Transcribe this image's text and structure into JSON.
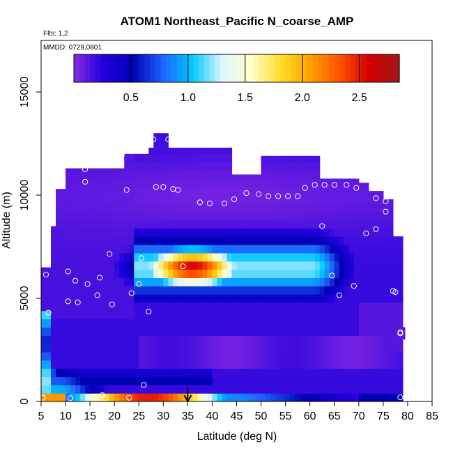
{
  "chart_data": {
    "type": "heatmap",
    "title": "ATOM1 Northeast_Pacific N_coarse_AMP",
    "flights_label": "Flts: 1,2",
    "date_label": "MMDD: 0729,0801",
    "xlabel": "Latitude (deg N)",
    "ylabel": "Altitude (m)",
    "xlim": [
      5,
      85
    ],
    "ylim": [
      0,
      17500
    ],
    "x_ticks": [
      "5",
      "10",
      "15",
      "20",
      "25",
      "30",
      "35",
      "40",
      "45",
      "50",
      "55",
      "60",
      "65",
      "70",
      "75",
      "80",
      "85"
    ],
    "y_ticks": [
      "0",
      "5000",
      "10000",
      "15000"
    ],
    "colorbar": {
      "range": [
        0,
        2.85
      ],
      "ticks": [
        "0.5",
        "1.0",
        "1.5",
        "2.0",
        "2.5"
      ],
      "colors": [
        "#8a2be2",
        "#1f00dc",
        "#0000b4",
        "#1e64ff",
        "#00c8ff",
        "#dcf5ff",
        "#ffffc8",
        "#ffdc28",
        "#ffa000",
        "#ff5000",
        "#d20000",
        "#a01919"
      ]
    },
    "marker_latitude": 35,
    "domain_profile": {
      "latitude": [
        5,
        7,
        8,
        10,
        14,
        20,
        22,
        27,
        28,
        31,
        35,
        40,
        44,
        50,
        56,
        62,
        67,
        70,
        72,
        75,
        77,
        79
      ],
      "top_altitude": [
        6500,
        8500,
        10300,
        11300,
        11300,
        11300,
        12000,
        12300,
        13000,
        12300,
        12300,
        12300,
        11000,
        11900,
        11900,
        10800,
        10800,
        10600,
        10200,
        9800,
        8000,
        5000
      ]
    },
    "field_features": [
      {
        "name": "background",
        "value": 0.2
      },
      {
        "name": "upper-troposphere-layer",
        "lat": 42,
        "alt": 10000,
        "value": 0.06
      },
      {
        "name": "mid-troposphere-plume",
        "lat": 36,
        "alt": 6500,
        "value": 2.6
      },
      {
        "name": "plume-halo",
        "lat": 46,
        "alt": 6500,
        "value": 1.2
      },
      {
        "name": "boundary-layer-low-lat",
        "lat": 27,
        "alt": 100,
        "value": 2.5
      },
      {
        "name": "boundary-layer-high-lat",
        "lat": 65,
        "alt": 100,
        "value": 0.9
      },
      {
        "name": "south-column",
        "lat": 6,
        "alt": 1200,
        "value": 1.2
      }
    ],
    "observation_points": [
      {
        "lat": 5.4,
        "alt": 180
      },
      {
        "lat": 11.0,
        "alt": 160
      },
      {
        "lat": 17.5,
        "alt": 300
      },
      {
        "lat": 18.0,
        "alt": 160
      },
      {
        "lat": 23.0,
        "alt": 180
      },
      {
        "lat": 26.0,
        "alt": 800
      },
      {
        "lat": 27.0,
        "alt": 4350
      },
      {
        "lat": 23.5,
        "alt": 5250
      },
      {
        "lat": 25.0,
        "alt": 5700
      },
      {
        "lat": 25.5,
        "alt": 6950
      },
      {
        "lat": 19.0,
        "alt": 7150
      },
      {
        "lat": 14.5,
        "alt": 5700
      },
      {
        "lat": 12.0,
        "alt": 5850
      },
      {
        "lat": 10.5,
        "alt": 6300
      },
      {
        "lat": 6.0,
        "alt": 6150
      },
      {
        "lat": 17.0,
        "alt": 6000
      },
      {
        "lat": 16.5,
        "alt": 5150
      },
      {
        "lat": 19.5,
        "alt": 4700
      },
      {
        "lat": 12.5,
        "alt": 4800
      },
      {
        "lat": 10.5,
        "alt": 4850
      },
      {
        "lat": 6.5,
        "alt": 4300
      },
      {
        "lat": 7.5,
        "alt": 10550
      },
      {
        "lat": 8.0,
        "alt": 11200
      },
      {
        "lat": 14.0,
        "alt": 10650
      },
      {
        "lat": 14.0,
        "alt": 11250
      },
      {
        "lat": 21.5,
        "alt": 11950
      },
      {
        "lat": 22.5,
        "alt": 10250
      },
      {
        "lat": 28.5,
        "alt": 10400
      },
      {
        "lat": 30.0,
        "alt": 10400
      },
      {
        "lat": 32.0,
        "alt": 10300
      },
      {
        "lat": 33.0,
        "alt": 10250
      },
      {
        "lat": 37.5,
        "alt": 9650
      },
      {
        "lat": 39.5,
        "alt": 9600
      },
      {
        "lat": 42.5,
        "alt": 9600
      },
      {
        "lat": 44.5,
        "alt": 9800
      },
      {
        "lat": 47.0,
        "alt": 10100
      },
      {
        "lat": 49.5,
        "alt": 10050
      },
      {
        "lat": 51.5,
        "alt": 9950
      },
      {
        "lat": 53.5,
        "alt": 9950
      },
      {
        "lat": 55.5,
        "alt": 9950
      },
      {
        "lat": 57.5,
        "alt": 9950
      },
      {
        "lat": 59.0,
        "alt": 10350
      },
      {
        "lat": 61.0,
        "alt": 10500
      },
      {
        "lat": 63.0,
        "alt": 10500
      },
      {
        "lat": 65.0,
        "alt": 10500
      },
      {
        "lat": 67.0,
        "alt": 11300
      },
      {
        "lat": 67.5,
        "alt": 10500
      },
      {
        "lat": 69.5,
        "alt": 10350
      },
      {
        "lat": 73.5,
        "alt": 9850
      },
      {
        "lat": 75.5,
        "alt": 9700
      },
      {
        "lat": 75.5,
        "alt": 9200
      },
      {
        "lat": 73.5,
        "alt": 8350
      },
      {
        "lat": 71.5,
        "alt": 8150
      },
      {
        "lat": 62.5,
        "alt": 8500
      },
      {
        "lat": 64.5,
        "alt": 6100
      },
      {
        "lat": 66.0,
        "alt": 5150
      },
      {
        "lat": 69.0,
        "alt": 5600
      },
      {
        "lat": 77.0,
        "alt": 5350
      },
      {
        "lat": 77.5,
        "alt": 5300
      },
      {
        "lat": 78.5,
        "alt": 3300
      },
      {
        "lat": 78.5,
        "alt": 3350
      },
      {
        "lat": 78.5,
        "alt": 200
      },
      {
        "lat": 28.0,
        "alt": 12700
      },
      {
        "lat": 31.0,
        "alt": 12700
      },
      {
        "lat": 34.0,
        "alt": 6550
      }
    ]
  }
}
